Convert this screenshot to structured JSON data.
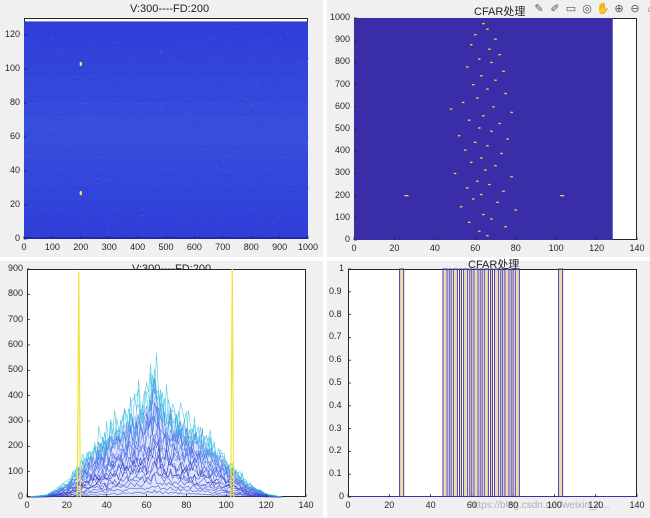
{
  "toolbar": {
    "icons": [
      "brush-icon",
      "pen-icon",
      "datatip-icon",
      "rotate-icon",
      "pan-icon",
      "zoom-in-icon",
      "zoom-out-icon",
      "home-icon"
    ],
    "glyphs": [
      "✎",
      "✐",
      "▭",
      "◎",
      "✋",
      "⊕",
      "⊖",
      "⌂"
    ]
  },
  "watermark": "https://blog.csdn.net/weixin_4...",
  "chart_data": [
    {
      "type": "heatmap",
      "title": "V:300----FD:200",
      "xlim": [
        0,
        1000
      ],
      "ylim": [
        0,
        130
      ],
      "xticks": [
        "0",
        "100",
        "200",
        "300",
        "400",
        "500",
        "600",
        "700",
        "800",
        "900",
        "1000"
      ],
      "yticks": [
        "0",
        "20",
        "40",
        "60",
        "80",
        "100",
        "120"
      ],
      "data_extent": {
        "x": [
          0,
          1000
        ],
        "y": [
          0,
          128
        ]
      },
      "background_color": "#2f3fd8",
      "peaks": [
        {
          "x": 200,
          "y": 103
        },
        {
          "x": 200,
          "y": 27
        }
      ],
      "peak_color": "#f5e04a"
    },
    {
      "type": "heatmap",
      "title": "CFAR处理",
      "xlim": [
        0,
        140
      ],
      "ylim": [
        0,
        1000
      ],
      "xticks": [
        "0",
        "20",
        "40",
        "60",
        "80",
        "100",
        "120",
        "140"
      ],
      "yticks": [
        "0",
        "100",
        "200",
        "300",
        "400",
        "500",
        "600",
        "700",
        "800",
        "900",
        "1000"
      ],
      "data_extent": {
        "x": [
          0,
          128
        ],
        "y": [
          0,
          1000
        ]
      },
      "background_color": "#3a2ea8",
      "detection_color": "#f0d64a",
      "detections": [
        {
          "x": 26,
          "y": 200
        },
        {
          "x": 103,
          "y": 200
        },
        {
          "x": 64,
          "y": 975
        },
        {
          "x": 66,
          "y": 950
        },
        {
          "x": 60,
          "y": 925
        },
        {
          "x": 70,
          "y": 905
        },
        {
          "x": 58,
          "y": 880
        },
        {
          "x": 67,
          "y": 860
        },
        {
          "x": 72,
          "y": 835
        },
        {
          "x": 62,
          "y": 815
        },
        {
          "x": 68,
          "y": 800
        },
        {
          "x": 56,
          "y": 780
        },
        {
          "x": 74,
          "y": 760
        },
        {
          "x": 63,
          "y": 740
        },
        {
          "x": 70,
          "y": 720
        },
        {
          "x": 59,
          "y": 700
        },
        {
          "x": 66,
          "y": 680
        },
        {
          "x": 75,
          "y": 660
        },
        {
          "x": 61,
          "y": 640
        },
        {
          "x": 54,
          "y": 620
        },
        {
          "x": 69,
          "y": 600
        },
        {
          "x": 48,
          "y": 590
        },
        {
          "x": 78,
          "y": 575
        },
        {
          "x": 64,
          "y": 560
        },
        {
          "x": 57,
          "y": 540
        },
        {
          "x": 72,
          "y": 525
        },
        {
          "x": 62,
          "y": 505
        },
        {
          "x": 68,
          "y": 490
        },
        {
          "x": 52,
          "y": 470
        },
        {
          "x": 76,
          "y": 455
        },
        {
          "x": 60,
          "y": 440
        },
        {
          "x": 66,
          "y": 425
        },
        {
          "x": 55,
          "y": 405
        },
        {
          "x": 73,
          "y": 390
        },
        {
          "x": 63,
          "y": 370
        },
        {
          "x": 58,
          "y": 350
        },
        {
          "x": 70,
          "y": 335
        },
        {
          "x": 65,
          "y": 315
        },
        {
          "x": 50,
          "y": 300
        },
        {
          "x": 78,
          "y": 285
        },
        {
          "x": 61,
          "y": 265
        },
        {
          "x": 67,
          "y": 250
        },
        {
          "x": 56,
          "y": 235
        },
        {
          "x": 74,
          "y": 220
        },
        {
          "x": 63,
          "y": 205
        },
        {
          "x": 59,
          "y": 185
        },
        {
          "x": 71,
          "y": 170
        },
        {
          "x": 53,
          "y": 150
        },
        {
          "x": 80,
          "y": 135
        },
        {
          "x": 64,
          "y": 115
        },
        {
          "x": 68,
          "y": 95
        },
        {
          "x": 57,
          "y": 80
        },
        {
          "x": 75,
          "y": 60
        },
        {
          "x": 62,
          "y": 40
        },
        {
          "x": 66,
          "y": 20
        }
      ]
    },
    {
      "type": "line",
      "title": "V:300----FD:200",
      "xlim": [
        0,
        140
      ],
      "ylim": [
        0,
        900
      ],
      "xticks": [
        "0",
        "20",
        "40",
        "60",
        "80",
        "100",
        "120",
        "140"
      ],
      "yticks": [
        "0",
        "100",
        "200",
        "300",
        "400",
        "500",
        "600",
        "700",
        "800",
        "900"
      ],
      "envelope": {
        "x": [
          0,
          10,
          20,
          30,
          40,
          50,
          55,
          60,
          64,
          68,
          72,
          80,
          90,
          100,
          110,
          120,
          128
        ],
        "y": [
          0,
          8,
          55,
          160,
          250,
          320,
          355,
          370,
          520,
          370,
          350,
          300,
          230,
          150,
          60,
          12,
          0
        ]
      },
      "spikes": [
        {
          "x": 26,
          "y": 890
        },
        {
          "x": 103,
          "y": 900
        }
      ],
      "colors": {
        "low": "#2b2fbf",
        "mid": "#4a6ee8",
        "high": "#2bbde0",
        "spike": "#f2e23c"
      }
    },
    {
      "type": "line",
      "title": "CFAR处理",
      "xlim": [
        0,
        140
      ],
      "ylim": [
        0,
        1
      ],
      "xticks": [
        "0",
        "20",
        "40",
        "60",
        "80",
        "100",
        "120",
        "140"
      ],
      "yticks": [
        "0",
        "0.1",
        "0.2",
        "0.3",
        "0.4",
        "0.5",
        "0.6",
        "0.7",
        "0.8",
        "0.9",
        "1"
      ],
      "pulses": [
        {
          "x0": 25,
          "x1": 27
        },
        {
          "x0": 46,
          "x1": 48
        },
        {
          "x0": 49,
          "x1": 50
        },
        {
          "x0": 51,
          "x1": 53
        },
        {
          "x0": 54,
          "x1": 55
        },
        {
          "x0": 56,
          "x1": 58
        },
        {
          "x0": 59,
          "x1": 60
        },
        {
          "x0": 61,
          "x1": 63
        },
        {
          "x0": 64,
          "x1": 65
        },
        {
          "x0": 66,
          "x1": 68
        },
        {
          "x0": 69,
          "x1": 70
        },
        {
          "x0": 71,
          "x1": 73
        },
        {
          "x0": 74,
          "x1": 75
        },
        {
          "x0": 76,
          "x1": 78
        },
        {
          "x0": 79,
          "x1": 80
        },
        {
          "x0": 81,
          "x1": 83
        },
        {
          "x0": 102,
          "x1": 104
        }
      ],
      "colors": {
        "line": "#3b2eb0",
        "fill": "#d8b040"
      }
    }
  ]
}
